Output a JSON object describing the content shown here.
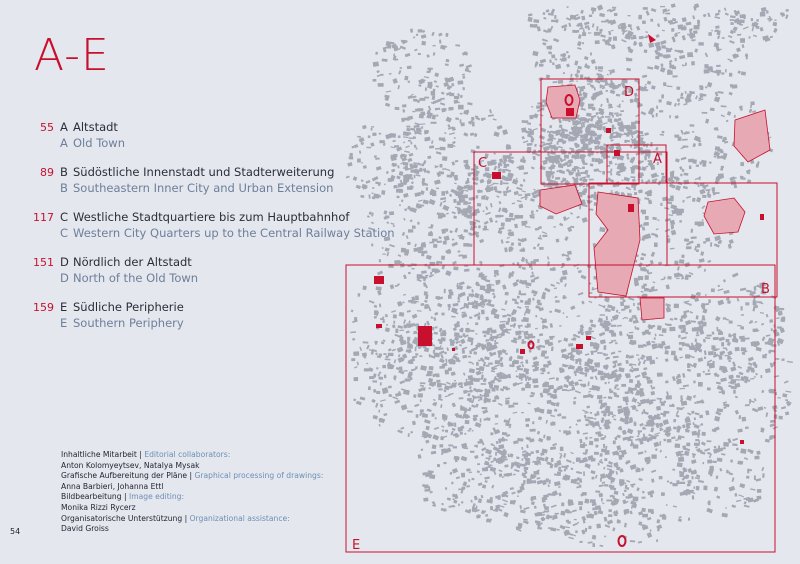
{
  "page": {
    "title": "A-E",
    "number": "54"
  },
  "toc": [
    {
      "page": "55",
      "letter": "A",
      "de": "Altstadt",
      "en": "Old Town"
    },
    {
      "page": "89",
      "letter": "B",
      "de": "Südöstliche Innenstadt und Stadterweiterung",
      "en": "Southeastern Inner City and Urban Extension"
    },
    {
      "page": "117",
      "letter": "C",
      "de": "Westliche Stadtquartiere bis zum Hauptbahnhof",
      "en": "Western City Quarters up to the Central Railway Station"
    },
    {
      "page": "151",
      "letter": "D",
      "de": "Nördlich der Altstadt",
      "en": "North of the Old Town"
    },
    {
      "page": "159",
      "letter": "E",
      "de": "Südliche Peripherie",
      "en": "Southern Periphery"
    }
  ],
  "credits": {
    "editorial_de": "Inhaltliche Mitarbeit",
    "editorial_en": "Editorial collaborators:",
    "editorial_names": "Anton Kolomyeytsev, Natalya Mysak",
    "graphics_de": "Grafische Aufbereitung der Pläne",
    "graphics_en": "Graphical processing of drawings:",
    "graphics_names": "Anna Barbieri, Johanna Ettl",
    "image_de": "Bildbearbeitung",
    "image_en": "Image editing:",
    "image_names": "Monika Rizzi Rycerz",
    "org_de": "Organisatorische Unterstützung",
    "org_en": "Organizational assistance:",
    "org_names": "David Groiss",
    "separator": "|"
  },
  "map": {
    "region_labels": {
      "a": "A",
      "b": "B",
      "c": "C",
      "d": "D",
      "e": "E"
    },
    "colors": {
      "accent": "#c8102e",
      "buildings": "#a4a8b3",
      "highlight_fill": "#e7a9b3"
    }
  }
}
